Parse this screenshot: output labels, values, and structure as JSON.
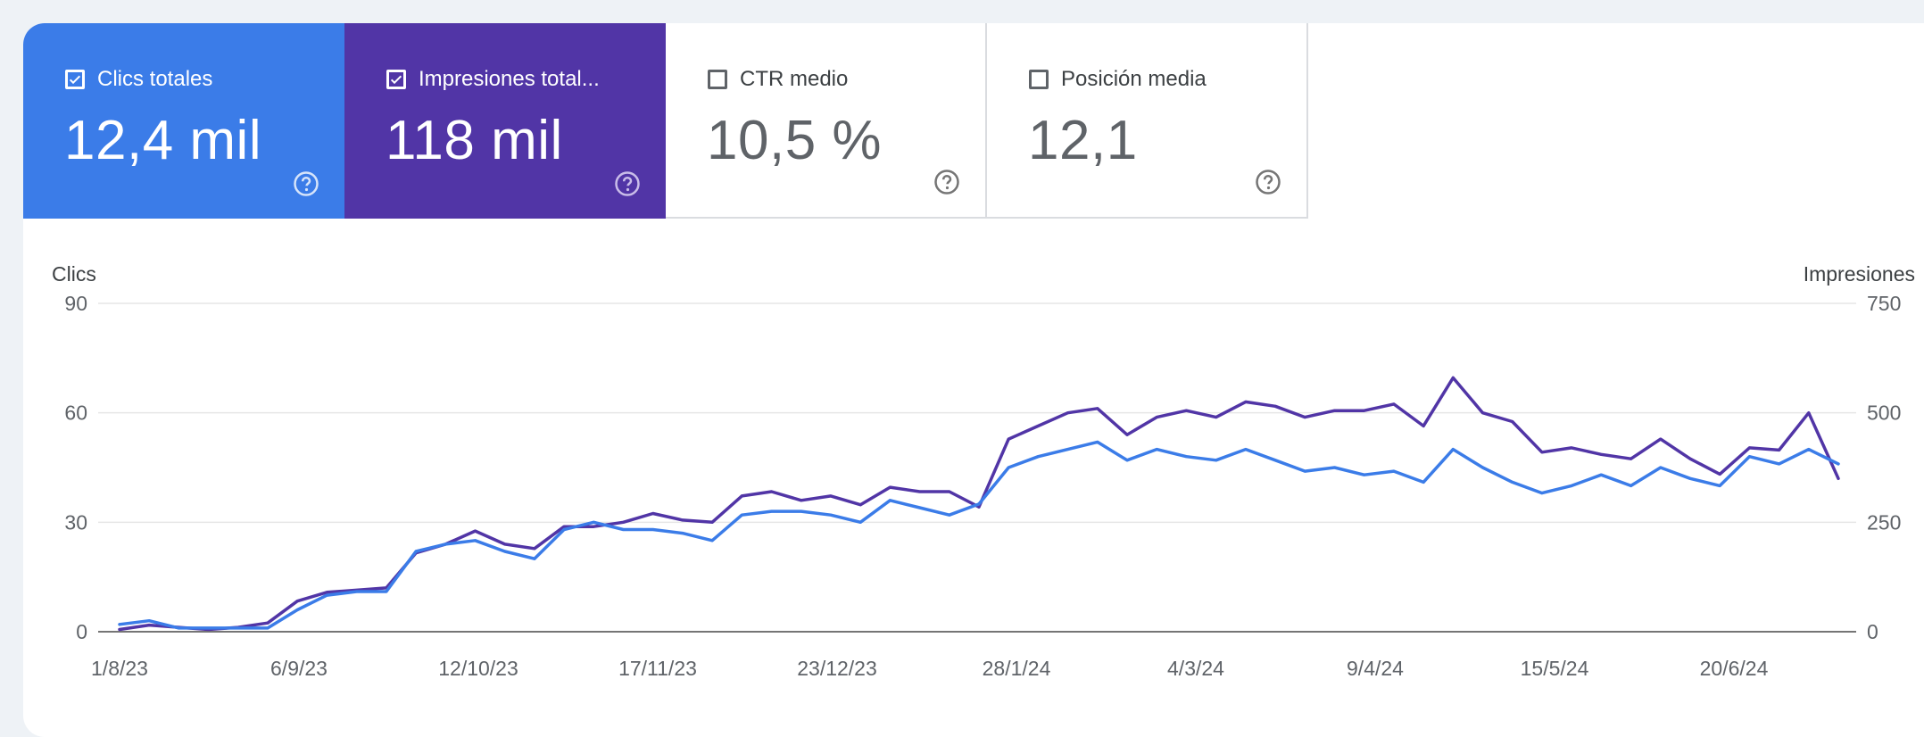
{
  "metrics": [
    {
      "label": "Clics totales",
      "value": "12,4 mil",
      "checked": true,
      "color": "#3b7ce8"
    },
    {
      "label": "Impresiones total...",
      "value": "118 mil",
      "checked": true,
      "color": "#5135a6"
    },
    {
      "label": "CTR medio",
      "value": "10,5 %",
      "checked": false
    },
    {
      "label": "Posición media",
      "value": "12,1",
      "checked": false
    }
  ],
  "icons": {
    "checkbox_checked": "check-icon",
    "help": "help-circle-icon"
  },
  "chart_data": {
    "type": "line",
    "left_axis_title": "Clics",
    "right_axis_title": "Impresiones",
    "y_left_ticks": [
      "90",
      "60",
      "30",
      "0"
    ],
    "y_right_ticks": [
      "750",
      "500",
      "250",
      "0"
    ],
    "ylim_left": [
      0,
      90
    ],
    "ylim_right": [
      0,
      750
    ],
    "x_tick_labels": [
      "1/8/23",
      "6/9/23",
      "12/10/23",
      "17/11/23",
      "23/12/23",
      "28/1/24",
      "4/3/24",
      "9/4/24",
      "15/5/24",
      "20/6/24"
    ],
    "x_start": "2023-08-01",
    "x_end": "2024-07-24",
    "grid": true,
    "series": [
      {
        "name": "Impresiones",
        "axis": "right",
        "color": "#5135a6",
        "step": "weekly",
        "values": [
          5,
          15,
          10,
          5,
          10,
          20,
          70,
          90,
          95,
          100,
          180,
          200,
          230,
          200,
          190,
          240,
          240,
          250,
          270,
          255,
          250,
          310,
          320,
          300,
          310,
          290,
          330,
          320,
          320,
          285,
          440,
          470,
          500,
          510,
          450,
          490,
          505,
          490,
          525,
          515,
          490,
          505,
          505,
          520,
          470,
          580,
          500,
          480,
          410,
          420,
          405,
          395,
          440,
          395,
          360,
          420,
          415,
          500,
          350
        ]
      },
      {
        "name": "Clics",
        "axis": "left",
        "color": "#3b7ce8",
        "step": "weekly",
        "values": [
          2,
          3,
          1,
          1,
          1,
          1,
          6,
          10,
          11,
          11,
          22,
          24,
          25,
          22,
          20,
          28,
          30,
          28,
          28,
          27,
          25,
          32,
          33,
          33,
          32,
          30,
          36,
          34,
          32,
          35,
          45,
          48,
          50,
          52,
          47,
          50,
          48,
          47,
          50,
          47,
          44,
          45,
          43,
          44,
          41,
          50,
          45,
          41,
          38,
          40,
          43,
          40,
          45,
          42,
          40,
          48,
          46,
          50,
          46
        ]
      }
    ]
  }
}
